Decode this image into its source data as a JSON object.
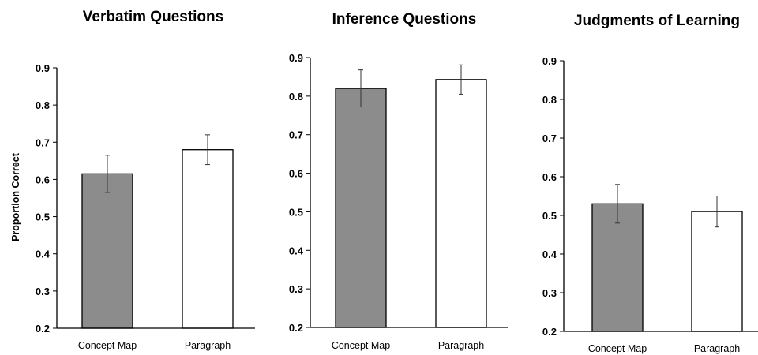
{
  "chart_data": [
    {
      "type": "bar",
      "title": "Verbatim Questions",
      "ylabel": "Proportion Correct",
      "categories": [
        "Concept Map",
        "Paragraph"
      ],
      "values": [
        0.615,
        0.68
      ],
      "errors": [
        0.05,
        0.04
      ],
      "colors": [
        "#8c8c8c",
        "#ffffff"
      ],
      "ylim": [
        0.2,
        0.9
      ],
      "yticks": [
        "0.2",
        "0.3",
        "0.4",
        "0.5",
        "0.6",
        "0.7",
        "0.8",
        "0.9"
      ],
      "grid": false
    },
    {
      "type": "bar",
      "title": "Inference Questions",
      "ylabel": "",
      "categories": [
        "Concept Map",
        "Paragraph"
      ],
      "values": [
        0.82,
        0.843
      ],
      "errors": [
        0.048,
        0.038
      ],
      "colors": [
        "#8c8c8c",
        "#ffffff"
      ],
      "ylim": [
        0.2,
        0.9
      ],
      "yticks": [
        "0.2",
        "0.3",
        "0.4",
        "0.5",
        "0.6",
        "0.7",
        "0.8",
        "0.9"
      ],
      "grid": false
    },
    {
      "type": "bar",
      "title": "Judgments of Learning",
      "ylabel": "",
      "categories": [
        "Concept Map",
        "Paragraph"
      ],
      "values": [
        0.53,
        0.51
      ],
      "errors": [
        0.05,
        0.04
      ],
      "colors": [
        "#8c8c8c",
        "#ffffff"
      ],
      "ylim": [
        0.2,
        0.9
      ],
      "yticks": [
        "0.2",
        "0.3",
        "0.4",
        "0.5",
        "0.6",
        "0.7",
        "0.8",
        "0.9"
      ],
      "grid": false
    }
  ]
}
